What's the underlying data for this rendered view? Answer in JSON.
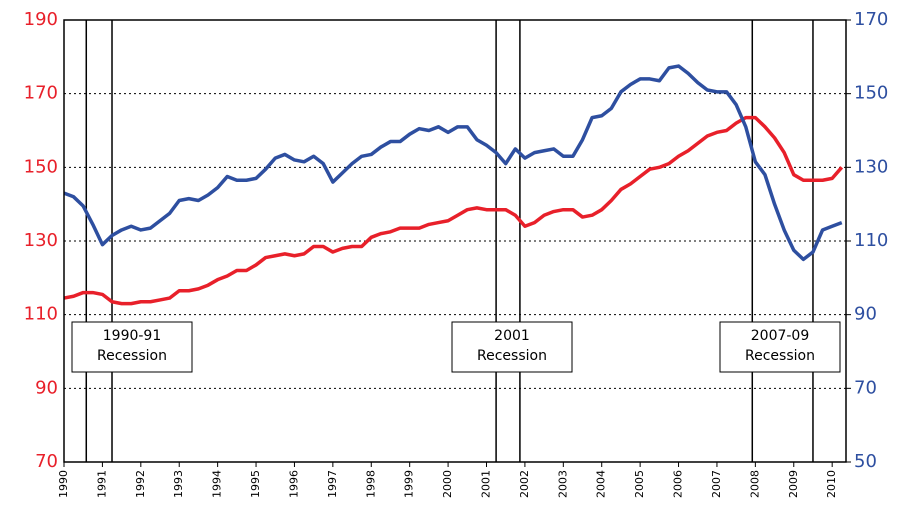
{
  "chart_data": {
    "type": "line",
    "x": [
      1990,
      1990.25,
      1990.5,
      1990.75,
      1991,
      1991.25,
      1991.5,
      1991.75,
      1992,
      1992.25,
      1992.5,
      1992.75,
      1993,
      1993.25,
      1993.5,
      1993.75,
      1994,
      1994.25,
      1994.5,
      1994.75,
      1995,
      1995.25,
      1995.5,
      1995.75,
      1996,
      1996.25,
      1996.5,
      1996.75,
      1997,
      1997.25,
      1997.5,
      1997.75,
      1998,
      1998.25,
      1998.5,
      1998.75,
      1999,
      1999.25,
      1999.5,
      1999.75,
      2000,
      2000.25,
      2000.5,
      2000.75,
      2001,
      2001.25,
      2001.5,
      2001.75,
      2002,
      2002.25,
      2002.5,
      2002.75,
      2003,
      2003.25,
      2003.5,
      2003.75,
      2004,
      2004.25,
      2004.5,
      2004.75,
      2005,
      2005.25,
      2005.5,
      2005.75,
      2006,
      2006.25,
      2006.5,
      2006.75,
      2007,
      2007.25,
      2007.5,
      2007.75,
      2008,
      2008.25,
      2008.5,
      2008.75,
      2009,
      2009.25,
      2009.5,
      2009.75,
      2010,
      2010.25
    ],
    "series": [
      {
        "color": "#e8202a",
        "values": [
          114.5,
          115,
          116,
          116,
          115.5,
          113.5,
          113,
          113,
          113.5,
          113.5,
          114,
          114.5,
          116.5,
          116.5,
          117,
          118,
          119.5,
          120.5,
          122,
          122,
          123.5,
          125.5,
          126,
          126.5,
          126,
          126.5,
          128.5,
          128.5,
          127,
          128,
          128.5,
          128.5,
          131,
          132,
          132.5,
          133.5,
          133.5,
          133.5,
          134.5,
          135,
          135.5,
          137,
          138.5,
          139,
          138.5,
          138.5,
          138.5,
          137,
          134,
          135,
          137,
          138,
          138.5,
          138.5,
          136.5,
          137,
          138.5,
          141,
          144,
          145.5,
          147.5,
          149.5,
          150,
          151,
          153,
          154.5,
          156.5,
          158.5,
          159.5,
          160,
          162,
          163.5,
          163.5,
          161,
          158,
          154,
          148,
          146.5,
          146.5,
          146.5,
          147,
          150
        ]
      },
      {
        "color": "#2e4fa0",
        "axis": "y2",
        "values": [
          123,
          122,
          119.5,
          114.5,
          109,
          111.5,
          113,
          114,
          113,
          113.5,
          115.5,
          117.5,
          121,
          121.5,
          121,
          122.5,
          124.5,
          127.5,
          126.5,
          126.5,
          127,
          129.5,
          132.5,
          133.5,
          132,
          131.5,
          133,
          131,
          126,
          128.5,
          131,
          133,
          133.5,
          135.5,
          137,
          137,
          139,
          140.5,
          140,
          141,
          139.5,
          141,
          141,
          137.5,
          136,
          134,
          131,
          135,
          132.5,
          134,
          134.5,
          135,
          133,
          133,
          137.5,
          143.5,
          144,
          146,
          150.5,
          152.5,
          154,
          154,
          153.5,
          157,
          157.5,
          155.5,
          153,
          151,
          150.5,
          150.5,
          147,
          141,
          131.5,
          128,
          120,
          113,
          107.5,
          105,
          107,
          113,
          114,
          115
        ]
      }
    ],
    "xlim": [
      1990,
      2010.36
    ],
    "xticks": [
      1990,
      1991,
      1992,
      1993,
      1994,
      1995,
      1996,
      1997,
      1998,
      1999,
      2000,
      2001,
      2002,
      2003,
      2004,
      2005,
      2006,
      2007,
      2008,
      2009,
      2010
    ],
    "ylim": [
      70,
      190
    ],
    "yticks": [
      70,
      90,
      110,
      130,
      150,
      170,
      190
    ],
    "y2lim": [
      50,
      170
    ],
    "y2ticks": [
      50,
      70,
      90,
      110,
      130,
      150,
      170
    ],
    "grid": true,
    "recessions": [
      {
        "start": 1990.58,
        "end": 1991.25,
        "label": [
          "1990-91",
          "Recession"
        ]
      },
      {
        "start": 2001.25,
        "end": 2001.87,
        "label": [
          "2001",
          "Recession"
        ]
      },
      {
        "start": 2007.92,
        "end": 2009.5,
        "label": [
          "2007-09",
          "Recession"
        ]
      }
    ]
  }
}
